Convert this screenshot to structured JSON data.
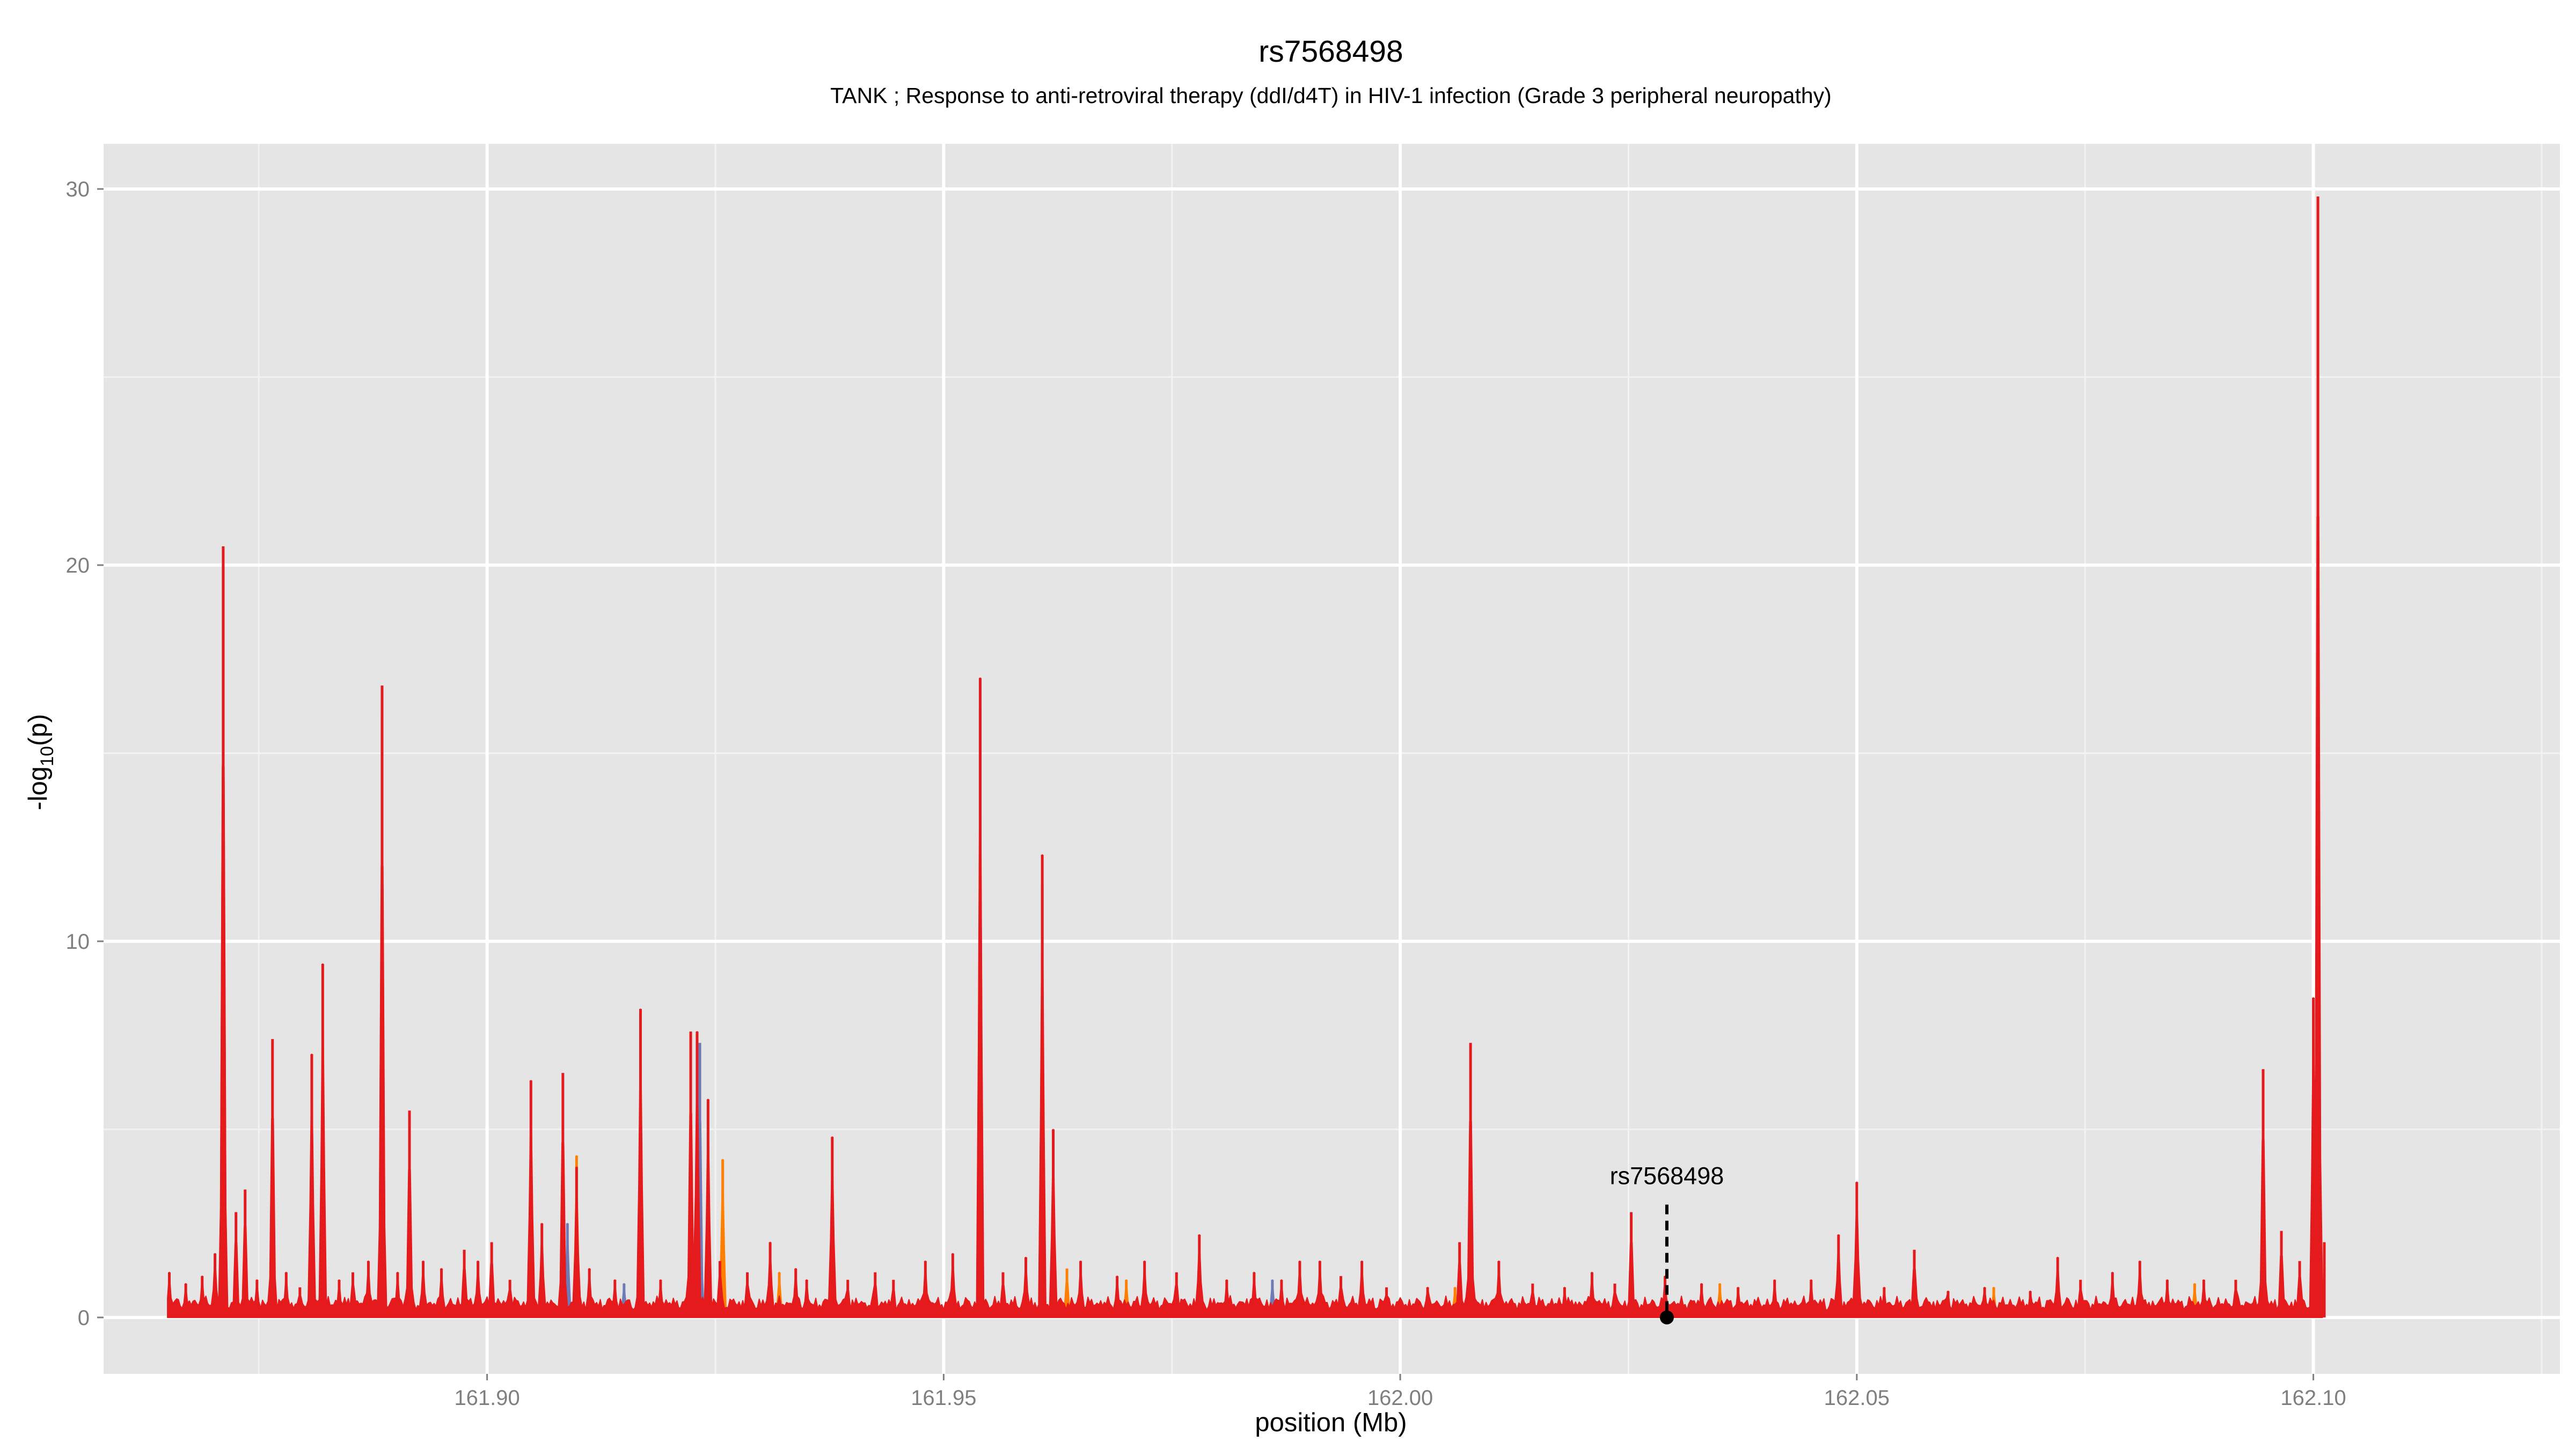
{
  "chart_data": {
    "type": "area",
    "title": "rs7568498",
    "subtitle": "TANK ; Response to anti-retroviral therapy (ddI/d4T) in HIV-1 infection (Grade 3 peripheral neuropathy)",
    "xlabel": "position (Mb)",
    "ylabel_base": "-log",
    "ylabel_sub": "10",
    "ylabel_suffix": "(p)",
    "xlim": [
      161.858,
      162.127
    ],
    "ylim": [
      -1.5,
      31.2
    ],
    "x_ticks": [
      161.9,
      161.95,
      162.0,
      162.05,
      162.1
    ],
    "x_tick_labels": [
      "161.90",
      "161.95",
      "162.00",
      "162.05",
      "162.10"
    ],
    "y_ticks": [
      0,
      10,
      20,
      30
    ],
    "y_tick_labels": [
      "0",
      "10",
      "20",
      "30"
    ],
    "grid": true,
    "colors": {
      "panel": "#e5e5e5",
      "grid_major": "#ffffff",
      "grid_minor": "#f2f2f2",
      "red": "#e41a1c",
      "orange": "#ff7f00",
      "blue": "#6f7bb7",
      "annotation": "#000000"
    },
    "baseline_range": [
      161.865,
      162.101
    ],
    "series": [
      {
        "color_key": "blue",
        "peaks": [
          [
            161.8711,
            20.0
          ],
          [
            161.8818,
            1.2
          ],
          [
            161.8885,
            16.0
          ],
          [
            161.9088,
            2.5
          ],
          [
            161.915,
            0.9
          ],
          [
            161.9233,
            7.3
          ],
          [
            161.954,
            16.2
          ],
          [
            161.9608,
            11.5
          ],
          [
            161.986,
            1.0
          ],
          [
            162.0945,
            1.2
          ]
        ]
      },
      {
        "color_key": "orange",
        "peaks": [
          [
            161.9098,
            4.3
          ],
          [
            161.9258,
            4.2
          ],
          [
            161.932,
            1.2
          ],
          [
            161.9635,
            1.3
          ],
          [
            161.97,
            1.0
          ],
          [
            162.006,
            0.8
          ],
          [
            162.035,
            0.9
          ],
          [
            162.065,
            0.8
          ],
          [
            162.087,
            0.9
          ]
        ]
      },
      {
        "color_key": "red",
        "peaks": [
          [
            161.8652,
            1.2
          ],
          [
            161.867,
            0.9
          ],
          [
            161.8688,
            1.1
          ],
          [
            161.8702,
            1.7
          ],
          [
            161.8711,
            20.5
          ],
          [
            161.8725,
            2.8
          ],
          [
            161.8735,
            3.4
          ],
          [
            161.8748,
            1.0
          ],
          [
            161.8765,
            7.4
          ],
          [
            161.878,
            1.2
          ],
          [
            161.8795,
            0.8
          ],
          [
            161.8808,
            7.0
          ],
          [
            161.882,
            9.4
          ],
          [
            161.8838,
            1.0
          ],
          [
            161.8853,
            1.2
          ],
          [
            161.887,
            1.5
          ],
          [
            161.8885,
            16.8
          ],
          [
            161.8902,
            1.2
          ],
          [
            161.8915,
            5.5
          ],
          [
            161.893,
            1.5
          ],
          [
            161.895,
            1.3
          ],
          [
            161.8975,
            1.8
          ],
          [
            161.899,
            1.5
          ],
          [
            161.9005,
            2.0
          ],
          [
            161.9025,
            1.0
          ],
          [
            161.9048,
            6.3
          ],
          [
            161.906,
            2.5
          ],
          [
            161.9083,
            6.5
          ],
          [
            161.9098,
            4.0
          ],
          [
            161.9112,
            1.3
          ],
          [
            161.914,
            1.0
          ],
          [
            161.9168,
            8.2
          ],
          [
            161.919,
            1.0
          ],
          [
            161.9223,
            7.6
          ],
          [
            161.923,
            7.6
          ],
          [
            161.9242,
            5.8
          ],
          [
            161.9255,
            1.5
          ],
          [
            161.9285,
            1.2
          ],
          [
            161.931,
            2.0
          ],
          [
            161.9338,
            1.3
          ],
          [
            161.935,
            1.0
          ],
          [
            161.9378,
            4.8
          ],
          [
            161.9395,
            1.0
          ],
          [
            161.9425,
            1.2
          ],
          [
            161.9445,
            1.0
          ],
          [
            161.948,
            1.5
          ],
          [
            161.951,
            1.7
          ],
          [
            161.954,
            17.0
          ],
          [
            161.9565,
            1.2
          ],
          [
            161.959,
            1.6
          ],
          [
            161.9608,
            12.3
          ],
          [
            161.962,
            5.0
          ],
          [
            161.965,
            1.5
          ],
          [
            161.969,
            1.1
          ],
          [
            161.972,
            1.5
          ],
          [
            161.9755,
            1.2
          ],
          [
            161.978,
            2.2
          ],
          [
            161.981,
            1.0
          ],
          [
            161.984,
            1.2
          ],
          [
            161.987,
            1.0
          ],
          [
            161.989,
            1.5
          ],
          [
            161.9912,
            1.5
          ],
          [
            161.9935,
            1.1
          ],
          [
            161.9958,
            1.5
          ],
          [
            161.9985,
            0.8
          ],
          [
            162.003,
            0.8
          ],
          [
            162.0065,
            2.0
          ],
          [
            162.0077,
            7.3
          ],
          [
            162.0108,
            1.5
          ],
          [
            162.0145,
            0.9
          ],
          [
            162.018,
            0.8
          ],
          [
            162.021,
            1.2
          ],
          [
            162.0235,
            0.9
          ],
          [
            162.0253,
            2.8
          ],
          [
            162.029,
            1.1
          ],
          [
            162.033,
            0.9
          ],
          [
            162.037,
            0.8
          ],
          [
            162.041,
            1.0
          ],
          [
            162.045,
            1.0
          ],
          [
            162.048,
            2.2
          ],
          [
            162.05,
            3.6
          ],
          [
            162.053,
            0.8
          ],
          [
            162.0563,
            1.8
          ],
          [
            162.06,
            0.7
          ],
          [
            162.064,
            0.8
          ],
          [
            162.069,
            0.7
          ],
          [
            162.072,
            1.6
          ],
          [
            162.0745,
            1.0
          ],
          [
            162.078,
            1.2
          ],
          [
            162.081,
            1.5
          ],
          [
            162.084,
            1.0
          ],
          [
            162.088,
            1.0
          ],
          [
            162.0915,
            1.0
          ],
          [
            162.0945,
            6.6
          ],
          [
            162.0965,
            2.3
          ],
          [
            162.0985,
            1.5
          ],
          [
            162.1,
            8.5
          ],
          [
            162.1005,
            29.8
          ],
          [
            162.1012,
            2.0
          ]
        ]
      }
    ],
    "annotations": [
      {
        "label": "rs7568498",
        "x": 162.0292,
        "y": 0,
        "line_top": 3.0
      }
    ]
  }
}
